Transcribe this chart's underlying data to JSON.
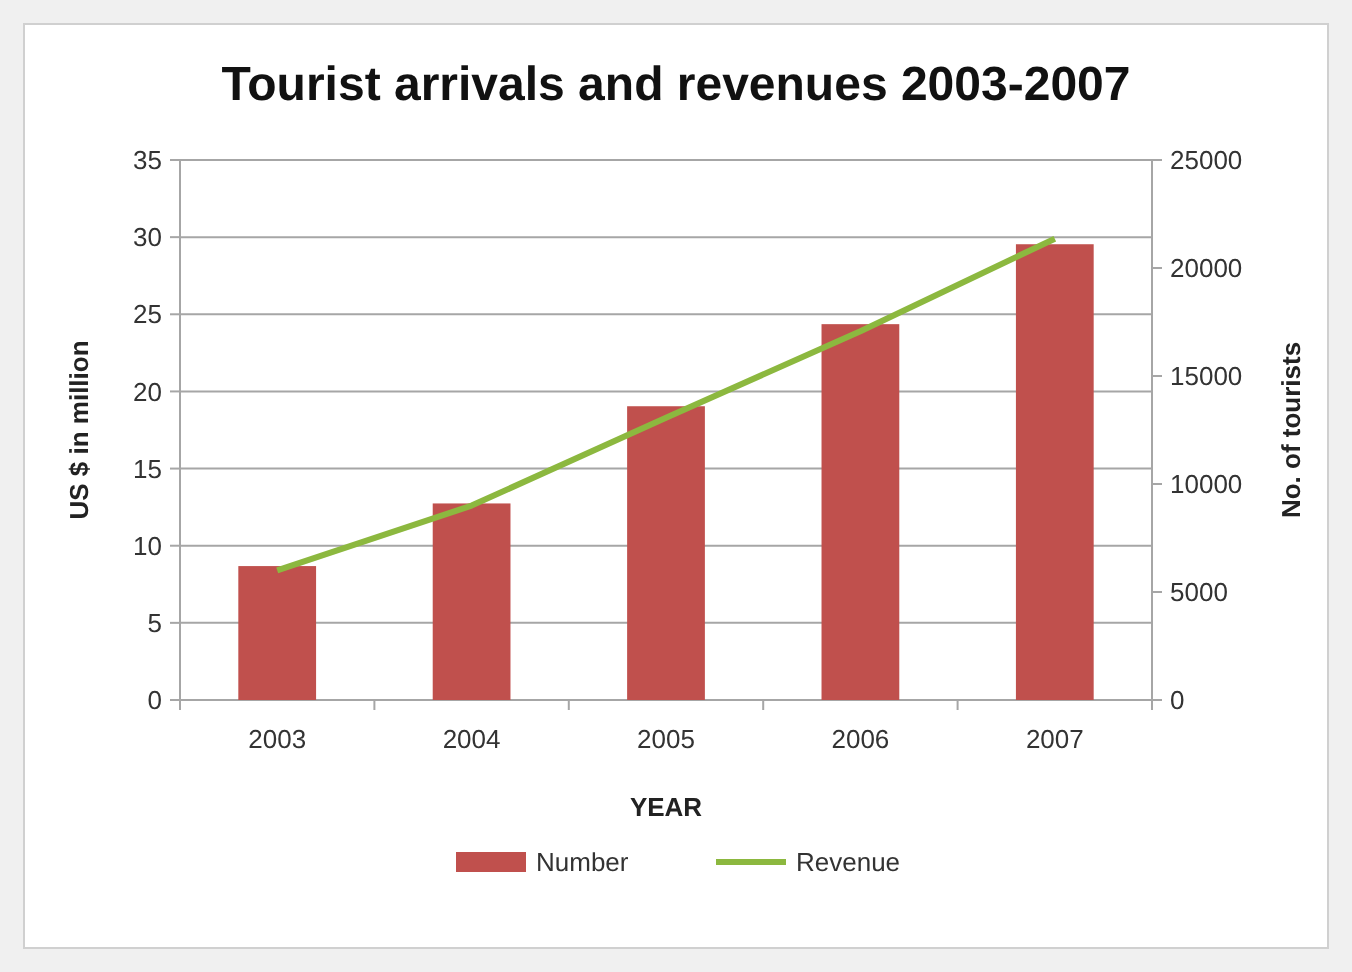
{
  "chart_data": {
    "type": "bar",
    "title": "Tourist arrivals and revenues 2003-2007",
    "xlabel": "YEAR",
    "ylabel": "US $ in million",
    "y2label": "No. of tourists",
    "categories": [
      "2003",
      "2004",
      "2005",
      "2006",
      "2007"
    ],
    "series": [
      {
        "name": "Number",
        "axis": "y2",
        "color": "#c0504d",
        "values": [
          6200,
          9100,
          13600,
          17400,
          21100
        ]
      },
      {
        "name": "Revenue",
        "type": "line",
        "axis": "y",
        "color": "#8cb83f",
        "values": [
          8.4,
          12.6,
          18.3,
          23.9,
          29.9
        ]
      }
    ],
    "ylim": [
      0,
      35
    ],
    "yticks": [
      0,
      5,
      10,
      15,
      20,
      25,
      30,
      35
    ],
    "y2lim": [
      0,
      25000
    ],
    "y2ticks": [
      0,
      5000,
      10000,
      15000,
      20000,
      25000
    ],
    "grid": "y",
    "legend": "bottom",
    "marker": "none"
  }
}
